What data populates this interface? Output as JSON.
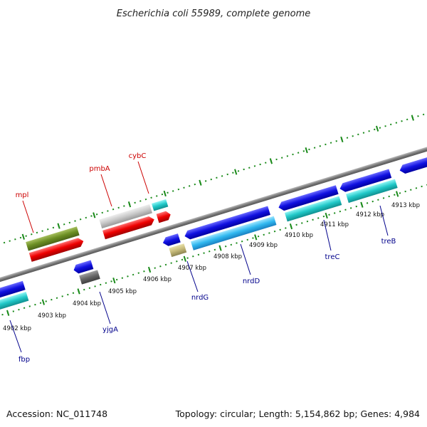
{
  "title": "Escherichia coli 55989, complete genome",
  "footer": {
    "accession": "Accession: NC_011748",
    "summary": "Topology: circular; Length: 5,154,862 bp; Genes: 4,984"
  },
  "colors": {
    "forward_label": "#cc0000",
    "reverse_label": "#00008b",
    "tick": "#1a8a1a",
    "backbone": "#888888"
  },
  "tick_labels": [
    {
      "text": "4902 kbp"
    },
    {
      "text": "4903 kbp"
    },
    {
      "text": "4904 kbp"
    },
    {
      "text": "4905 kbp"
    },
    {
      "text": "4906 kbp"
    },
    {
      "text": "4907 kbp"
    },
    {
      "text": "4908 kbp"
    },
    {
      "text": "4909 kbp"
    },
    {
      "text": "4910 kbp"
    },
    {
      "text": "4911 kbp"
    },
    {
      "text": "4912 kbp"
    },
    {
      "text": "4913 kbp"
    }
  ],
  "gene_labels": [
    {
      "text": "mpl",
      "strand": "forward"
    },
    {
      "text": "pmbA",
      "strand": "forward"
    },
    {
      "text": "cybC",
      "strand": "forward"
    },
    {
      "text": "fbp",
      "strand": "reverse"
    },
    {
      "text": "yjgA",
      "strand": "reverse"
    },
    {
      "text": "nrdG",
      "strand": "reverse"
    },
    {
      "text": "nrdD",
      "strand": "reverse"
    },
    {
      "text": "treC",
      "strand": "reverse"
    },
    {
      "text": "treB",
      "strand": "reverse"
    }
  ]
}
